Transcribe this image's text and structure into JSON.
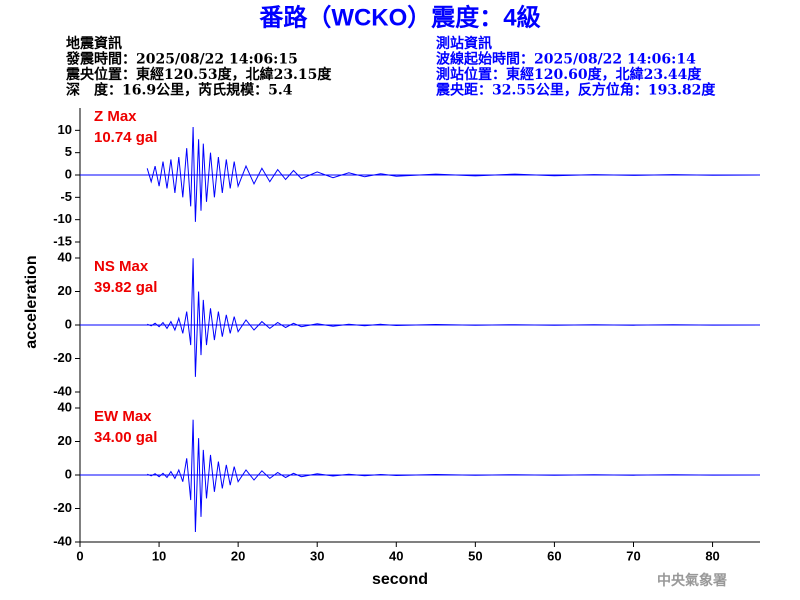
{
  "header": {
    "title": "番路（WCKO）震度：4級",
    "left": [
      "地震資訊",
      "發震時間：2025/08/22 14:06:15",
      "震央位置：東經120.53度，北緯23.15度",
      "深　度：16.9公里，芮氏規模：5.4"
    ],
    "right": [
      "測站資訊",
      "波線起始時間：2025/08/22 14:06:14",
      "測站位置：東經120.60度，北緯23.44度",
      "震央距：32.55公里，反方位角：193.82度"
    ],
    "footer": "中央氣象署"
  },
  "chart_data": [
    {
      "type": "line",
      "annotations": [
        "Z Max",
        "10.74 gal"
      ],
      "color": "#0000ff",
      "xlim": [
        0,
        86
      ],
      "ylim": [
        -15,
        15
      ],
      "yticks": [
        10,
        5,
        0,
        -5,
        -10,
        -15
      ],
      "x": [
        8.5,
        9,
        9.5,
        10,
        10.5,
        11,
        11.5,
        12,
        12.5,
        13,
        13.5,
        14,
        14.3,
        14.6,
        15,
        15.3,
        15.6,
        16,
        16.5,
        17,
        17.5,
        18,
        18.5,
        19,
        19.5,
        20,
        21,
        22,
        23,
        24,
        25,
        26,
        27,
        28,
        30,
        32,
        34,
        36,
        38,
        40,
        45,
        50,
        55,
        60,
        65,
        70,
        75,
        80,
        86
      ],
      "values": [
        1.5,
        -1.5,
        2,
        -2.5,
        3,
        -3,
        3.5,
        -4,
        4,
        -5,
        6,
        -7,
        10.74,
        -10.5,
        8,
        -8,
        7,
        -6,
        5,
        -5,
        4,
        -4,
        3.5,
        -3,
        3,
        -2.5,
        2,
        -2,
        1.5,
        -1.5,
        1.2,
        -1,
        1,
        -0.8,
        0.7,
        -0.6,
        0.5,
        -0.4,
        0.3,
        -0.3,
        0.2,
        -0.2,
        0.2,
        -0.15,
        0.1,
        -0.1,
        0.1,
        -0.05,
        0
      ]
    },
    {
      "type": "line",
      "annotations": [
        "NS Max",
        "39.82 gal"
      ],
      "ylabel": "acceleration",
      "color": "#0000ff",
      "xlim": [
        0,
        86
      ],
      "ylim": [
        -40,
        40
      ],
      "yticks": [
        40,
        20,
        0,
        -20,
        -40
      ],
      "x": [
        8.5,
        9,
        9.5,
        10,
        10.5,
        11,
        11.5,
        12,
        12.5,
        13,
        13.5,
        14,
        14.3,
        14.6,
        15,
        15.3,
        15.6,
        16,
        16.5,
        17,
        17.5,
        18,
        18.5,
        19,
        19.5,
        20,
        21,
        22,
        23,
        24,
        25,
        26,
        27,
        28,
        30,
        32,
        34,
        36,
        38,
        40,
        45,
        50,
        55,
        60,
        65,
        70,
        75,
        80,
        86
      ],
      "values": [
        0.5,
        -0.5,
        1,
        -1,
        1.5,
        -2,
        2,
        -3,
        4,
        -5,
        8,
        -12,
        39.82,
        -31,
        20,
        -18,
        15,
        -12,
        10,
        -9,
        8,
        -7,
        6,
        -5,
        5,
        -4,
        3,
        -3,
        2,
        -2,
        1.5,
        -1.5,
        1,
        -1,
        0.8,
        -0.7,
        0.5,
        -0.5,
        0.4,
        -0.3,
        0.3,
        -0.2,
        0.2,
        -0.2,
        0.1,
        -0.1,
        0.1,
        -0.05,
        0
      ]
    },
    {
      "type": "line",
      "annotations": [
        "EW Max",
        "34.00 gal"
      ],
      "xlabel": "second",
      "color": "#0000ff",
      "xlim": [
        0,
        86
      ],
      "ylim": [
        -40,
        40
      ],
      "yticks": [
        40,
        20,
        0,
        -20,
        -40
      ],
      "xticks": [
        0,
        10,
        20,
        30,
        40,
        50,
        60,
        70,
        80
      ],
      "x": [
        8.5,
        9,
        9.5,
        10,
        10.5,
        11,
        11.5,
        12,
        12.5,
        13,
        13.5,
        14,
        14.3,
        14.6,
        15,
        15.3,
        15.6,
        16,
        16.5,
        17,
        17.5,
        18,
        18.5,
        19,
        19.5,
        20,
        21,
        22,
        23,
        24,
        25,
        26,
        27,
        28,
        30,
        32,
        34,
        36,
        38,
        40,
        45,
        50,
        55,
        60,
        65,
        70,
        75,
        80,
        86
      ],
      "values": [
        0.5,
        -0.5,
        0.8,
        -1,
        1,
        -1.5,
        2,
        -2,
        3,
        -4,
        10,
        -15,
        33,
        -34,
        22,
        -25,
        15,
        -14,
        12,
        -10,
        8,
        -8,
        6,
        -6,
        5,
        -4,
        3,
        -3,
        2.5,
        -2,
        1.5,
        -1.5,
        1,
        -1,
        0.8,
        -0.6,
        0.5,
        -0.5,
        0.3,
        -0.3,
        0.3,
        -0.2,
        0.2,
        -0.15,
        0.1,
        -0.1,
        0.1,
        -0.05,
        0
      ]
    }
  ]
}
